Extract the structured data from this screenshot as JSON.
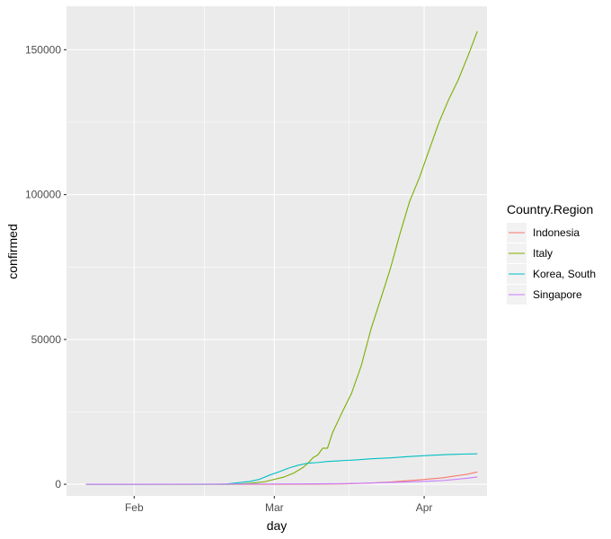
{
  "chart_data": {
    "type": "line",
    "title": "",
    "xlabel": "day",
    "ylabel": "confirmed",
    "x_ticks": [
      "Feb",
      "Mar",
      "Apr"
    ],
    "x_tick_dates": [
      "2020-02-01",
      "2020-03-01",
      "2020-04-01"
    ],
    "xlim": [
      "2020-01-18",
      "2020-04-14"
    ],
    "y_ticks": [
      "0",
      "50000",
      "100000",
      "150000"
    ],
    "ylim": [
      -4000,
      165000
    ],
    "grid": true,
    "legend_position": "right",
    "legend_title": "Country.Region",
    "colors": {
      "panel": "#ebebeb",
      "grid": "#ffffff",
      "Indonesia": "#f8766d",
      "Italy": "#7cae00",
      "Korea, South": "#00bfc4",
      "Singapore": "#c77cff"
    },
    "series": [
      {
        "name": "Indonesia",
        "points": [
          [
            "2020-01-22",
            0
          ],
          [
            "2020-03-01",
            0
          ],
          [
            "2020-03-02",
            2
          ],
          [
            "2020-03-10",
            27
          ],
          [
            "2020-03-15",
            117
          ],
          [
            "2020-03-20",
            369
          ],
          [
            "2020-03-25",
            790
          ],
          [
            "2020-03-31",
            1528
          ],
          [
            "2020-04-05",
            2273
          ],
          [
            "2020-04-10",
            3512
          ],
          [
            "2020-04-12",
            4241
          ]
        ]
      },
      {
        "name": "Italy",
        "points": [
          [
            "2020-01-22",
            0
          ],
          [
            "2020-01-31",
            2
          ],
          [
            "2020-02-20",
            3
          ],
          [
            "2020-02-22",
            62
          ],
          [
            "2020-02-25",
            322
          ],
          [
            "2020-02-28",
            888
          ],
          [
            "2020-03-01",
            1694
          ],
          [
            "2020-03-03",
            2502
          ],
          [
            "2020-03-05",
            3858
          ],
          [
            "2020-03-07",
            5883
          ],
          [
            "2020-03-08",
            7375
          ],
          [
            "2020-03-09",
            9172
          ],
          [
            "2020-03-10",
            10149
          ],
          [
            "2020-03-11",
            12462
          ],
          [
            "2020-03-12",
            12462
          ],
          [
            "2020-03-13",
            17660
          ],
          [
            "2020-03-15",
            24747
          ],
          [
            "2020-03-17",
            31506
          ],
          [
            "2020-03-19",
            41035
          ],
          [
            "2020-03-21",
            53578
          ],
          [
            "2020-03-23",
            63927
          ],
          [
            "2020-03-25",
            74386
          ],
          [
            "2020-03-27",
            86498
          ],
          [
            "2020-03-29",
            97689
          ],
          [
            "2020-03-31",
            105792
          ],
          [
            "2020-04-02",
            115242
          ],
          [
            "2020-04-04",
            124632
          ],
          [
            "2020-04-06",
            132547
          ],
          [
            "2020-04-08",
            139422
          ],
          [
            "2020-04-10",
            147577
          ],
          [
            "2020-04-12",
            156363
          ]
        ]
      },
      {
        "name": "Korea, South",
        "points": [
          [
            "2020-01-22",
            1
          ],
          [
            "2020-02-18",
            31
          ],
          [
            "2020-02-20",
            104
          ],
          [
            "2020-02-22",
            433
          ],
          [
            "2020-02-24",
            833
          ],
          [
            "2020-02-25",
            977
          ],
          [
            "2020-02-27",
            1766
          ],
          [
            "2020-02-29",
            3150
          ],
          [
            "2020-03-02",
            4335
          ],
          [
            "2020-03-04",
            5621
          ],
          [
            "2020-03-06",
            6593
          ],
          [
            "2020-03-08",
            7313
          ],
          [
            "2020-03-10",
            7513
          ],
          [
            "2020-03-12",
            7869
          ],
          [
            "2020-03-15",
            8162
          ],
          [
            "2020-03-18",
            8413
          ],
          [
            "2020-03-21",
            8799
          ],
          [
            "2020-03-25",
            9137
          ],
          [
            "2020-03-29",
            9583
          ],
          [
            "2020-04-02",
            9976
          ],
          [
            "2020-04-06",
            10284
          ],
          [
            "2020-04-09",
            10423
          ],
          [
            "2020-04-12",
            10512
          ]
        ]
      },
      {
        "name": "Singapore",
        "points": [
          [
            "2020-01-22",
            0
          ],
          [
            "2020-02-01",
            16
          ],
          [
            "2020-02-15",
            72
          ],
          [
            "2020-03-01",
            106
          ],
          [
            "2020-03-10",
            160
          ],
          [
            "2020-03-15",
            226
          ],
          [
            "2020-03-20",
            385
          ],
          [
            "2020-03-25",
            631
          ],
          [
            "2020-03-31",
            926
          ],
          [
            "2020-04-05",
            1309
          ],
          [
            "2020-04-10",
            2108
          ],
          [
            "2020-04-12",
            2532
          ]
        ]
      }
    ]
  }
}
